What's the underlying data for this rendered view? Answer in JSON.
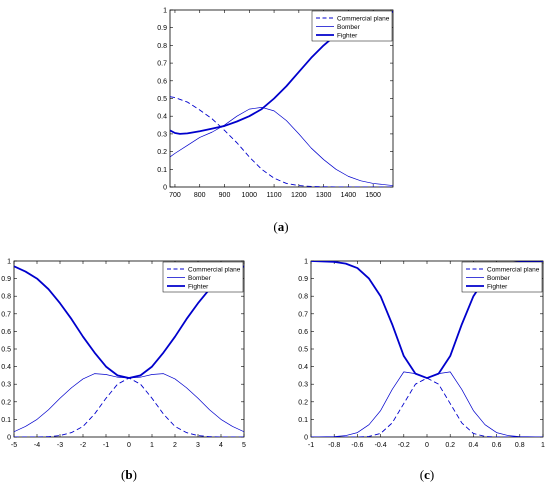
{
  "chart_data": [
    {
      "type": "line",
      "caption_open": "(",
      "caption_letter": "a",
      "caption_close": ")",
      "xlim": [
        680,
        1580
      ],
      "ylim": [
        0,
        1
      ],
      "xticks": [
        700,
        800,
        900,
        1000,
        1100,
        1200,
        1300,
        1400,
        1500
      ],
      "xtick_labels": [
        "700",
        "800",
        "900",
        "1000",
        "1100",
        "1200",
        "1300",
        "1400",
        "1500"
      ],
      "yticks": [
        0,
        0.1,
        0.2,
        0.3,
        0.4,
        0.5,
        0.6,
        0.7,
        0.8,
        0.9,
        1
      ],
      "ytick_labels": [
        "0",
        "0.1",
        "0.2",
        "0.3",
        "0.4",
        "0.5",
        "0.6",
        "0.7",
        "0.8",
        "0.9",
        "1"
      ],
      "legend_position": "top-right",
      "series": [
        {
          "name": "Commercial plane",
          "style": "dashed",
          "color": "#0000cc",
          "x": [
            680,
            700,
            750,
            800,
            850,
            900,
            950,
            1000,
            1050,
            1100,
            1150,
            1200,
            1250,
            1300,
            1400,
            1500,
            1580
          ],
          "y": [
            0.51,
            0.505,
            0.48,
            0.435,
            0.385,
            0.32,
            0.25,
            0.17,
            0.1,
            0.05,
            0.02,
            0.008,
            0.003,
            0.001,
            0,
            0,
            0
          ]
        },
        {
          "name": "Bomber",
          "style": "thin",
          "color": "#0000cc",
          "x": [
            680,
            700,
            750,
            800,
            850,
            900,
            950,
            1000,
            1050,
            1100,
            1150,
            1200,
            1250,
            1300,
            1350,
            1400,
            1450,
            1500,
            1580
          ],
          "y": [
            0.17,
            0.19,
            0.235,
            0.28,
            0.31,
            0.35,
            0.4,
            0.44,
            0.45,
            0.43,
            0.375,
            0.3,
            0.22,
            0.155,
            0.1,
            0.06,
            0.035,
            0.02,
            0.008
          ]
        },
        {
          "name": "Fighter",
          "style": "thick",
          "color": "#0000cc",
          "x": [
            680,
            700,
            720,
            750,
            800,
            850,
            900,
            950,
            1000,
            1050,
            1100,
            1150,
            1200,
            1250,
            1300,
            1350,
            1400,
            1450,
            1500,
            1580
          ],
          "y": [
            0.32,
            0.305,
            0.3,
            0.303,
            0.315,
            0.33,
            0.345,
            0.37,
            0.4,
            0.44,
            0.5,
            0.57,
            0.65,
            0.73,
            0.8,
            0.86,
            0.91,
            0.945,
            0.97,
            0.99
          ]
        }
      ]
    },
    {
      "type": "line",
      "caption_open": "(",
      "caption_letter": "b",
      "caption_close": ")",
      "xlim": [
        -5,
        5
      ],
      "ylim": [
        0,
        1
      ],
      "xticks": [
        -5,
        -4,
        -3,
        -2,
        -1,
        0,
        1,
        2,
        3,
        4,
        5
      ],
      "xtick_labels": [
        "-5",
        "-4",
        "-3",
        "-2",
        "-1",
        "0",
        "1",
        "2",
        "3",
        "4",
        "5"
      ],
      "yticks": [
        0,
        0.1,
        0.2,
        0.3,
        0.4,
        0.5,
        0.6,
        0.7,
        0.8,
        0.9,
        1
      ],
      "ytick_labels": [
        "0",
        "0.1",
        "0.2",
        "0.3",
        "0.4",
        "0.5",
        "0.6",
        "0.7",
        "0.8",
        "0.9",
        "1"
      ],
      "legend_position": "top-right",
      "series": [
        {
          "name": "Commercial plane",
          "style": "dashed",
          "color": "#0000cc",
          "x": [
            -5,
            -4,
            -3.5,
            -3,
            -2.5,
            -2,
            -1.5,
            -1,
            -0.5,
            0,
            0.5,
            1,
            1.5,
            2,
            2.5,
            3,
            3.5,
            4,
            5
          ],
          "y": [
            0,
            0,
            0.002,
            0.008,
            0.025,
            0.06,
            0.13,
            0.22,
            0.3,
            0.335,
            0.3,
            0.22,
            0.13,
            0.06,
            0.025,
            0.008,
            0.002,
            0,
            0
          ]
        },
        {
          "name": "Bomber",
          "style": "thin",
          "color": "#0000cc",
          "x": [
            -5,
            -4.5,
            -4,
            -3.5,
            -3,
            -2.5,
            -2,
            -1.5,
            -1,
            -0.5,
            0,
            0.5,
            1,
            1.5,
            2,
            2.5,
            3,
            3.5,
            4,
            4.5,
            5
          ],
          "y": [
            0.03,
            0.06,
            0.1,
            0.155,
            0.22,
            0.28,
            0.33,
            0.36,
            0.355,
            0.34,
            0.335,
            0.34,
            0.355,
            0.36,
            0.33,
            0.28,
            0.22,
            0.155,
            0.1,
            0.06,
            0.03
          ]
        },
        {
          "name": "Fighter",
          "style": "thick",
          "color": "#0000cc",
          "x": [
            -5,
            -4.5,
            -4,
            -3.5,
            -3,
            -2.5,
            -2,
            -1.5,
            -1,
            -0.5,
            0,
            0.5,
            1,
            1.5,
            2,
            2.5,
            3,
            3.5,
            4,
            4.5,
            5
          ],
          "y": [
            0.97,
            0.94,
            0.9,
            0.84,
            0.76,
            0.67,
            0.57,
            0.48,
            0.4,
            0.35,
            0.335,
            0.35,
            0.4,
            0.48,
            0.57,
            0.67,
            0.76,
            0.84,
            0.9,
            0.94,
            0.97
          ]
        }
      ]
    },
    {
      "type": "line",
      "caption_open": "(",
      "caption_letter": "c",
      "caption_close": ")",
      "xlim": [
        -1,
        1
      ],
      "ylim": [
        0,
        1
      ],
      "xticks": [
        -1,
        -0.8,
        -0.6,
        -0.4,
        -0.2,
        0,
        0.2,
        0.4,
        0.6,
        0.8,
        1
      ],
      "xtick_labels": [
        "-1",
        "-0.8",
        "-0.6",
        "-0.4",
        "-0.2",
        "0",
        "0.2",
        "0.4",
        "0.6",
        "0.8",
        "1"
      ],
      "yticks": [
        0,
        0.1,
        0.2,
        0.3,
        0.4,
        0.5,
        0.6,
        0.7,
        0.8,
        0.9,
        1
      ],
      "ytick_labels": [
        "0",
        "0.1",
        "0.2",
        "0.3",
        "0.4",
        "0.5",
        "0.6",
        "0.7",
        "0.8",
        "0.9",
        "1"
      ],
      "legend_position": "top-right",
      "series": [
        {
          "name": "Commercial plane",
          "style": "dashed",
          "color": "#0000cc",
          "x": [
            -1,
            -0.6,
            -0.5,
            -0.4,
            -0.3,
            -0.2,
            -0.1,
            0,
            0.1,
            0.2,
            0.3,
            0.4,
            0.5,
            0.6,
            1
          ],
          "y": [
            0,
            0,
            0.003,
            0.02,
            0.08,
            0.19,
            0.3,
            0.335,
            0.3,
            0.19,
            0.08,
            0.02,
            0.003,
            0,
            0
          ]
        },
        {
          "name": "Bomber",
          "style": "thin",
          "color": "#0000cc",
          "x": [
            -1,
            -0.8,
            -0.7,
            -0.6,
            -0.5,
            -0.4,
            -0.3,
            -0.2,
            -0.1,
            0,
            0.1,
            0.2,
            0.3,
            0.4,
            0.5,
            0.6,
            0.7,
            0.8,
            1
          ],
          "y": [
            0,
            0.002,
            0.008,
            0.025,
            0.07,
            0.15,
            0.27,
            0.37,
            0.36,
            0.335,
            0.36,
            0.37,
            0.27,
            0.15,
            0.07,
            0.025,
            0.008,
            0.002,
            0
          ]
        },
        {
          "name": "Fighter",
          "style": "thick",
          "color": "#0000cc",
          "x": [
            -1,
            -0.8,
            -0.7,
            -0.6,
            -0.5,
            -0.4,
            -0.3,
            -0.2,
            -0.1,
            0,
            0.1,
            0.2,
            0.3,
            0.4,
            0.5,
            0.6,
            0.7,
            0.8,
            1
          ],
          "y": [
            1,
            0.995,
            0.985,
            0.96,
            0.9,
            0.8,
            0.64,
            0.46,
            0.36,
            0.335,
            0.36,
            0.46,
            0.64,
            0.8,
            0.9,
            0.96,
            0.985,
            0.995,
            1
          ]
        }
      ]
    }
  ]
}
